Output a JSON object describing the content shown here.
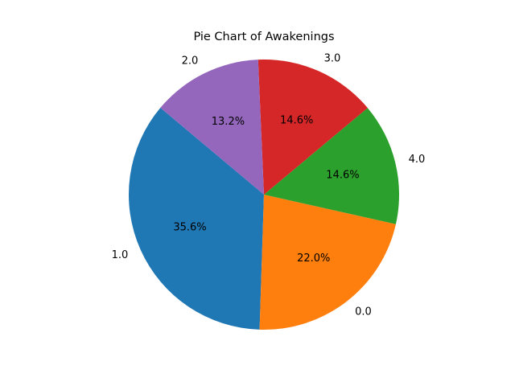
{
  "chart_data": {
    "type": "pie",
    "title": "Pie Chart of Awakenings",
    "categories": [
      "1.0",
      "0.0",
      "4.0",
      "3.0",
      "2.0"
    ],
    "values": [
      35.6,
      22.0,
      14.6,
      14.6,
      13.2
    ],
    "percent_labels": [
      "35.6%",
      "22.0%",
      "14.6%",
      "14.6%",
      "13.2%"
    ],
    "colors": [
      "#1f77b4",
      "#ff7f0e",
      "#2ca02c",
      "#d62728",
      "#9467bd"
    ],
    "start_angle_deg": 140,
    "direction": "counterclockwise"
  }
}
